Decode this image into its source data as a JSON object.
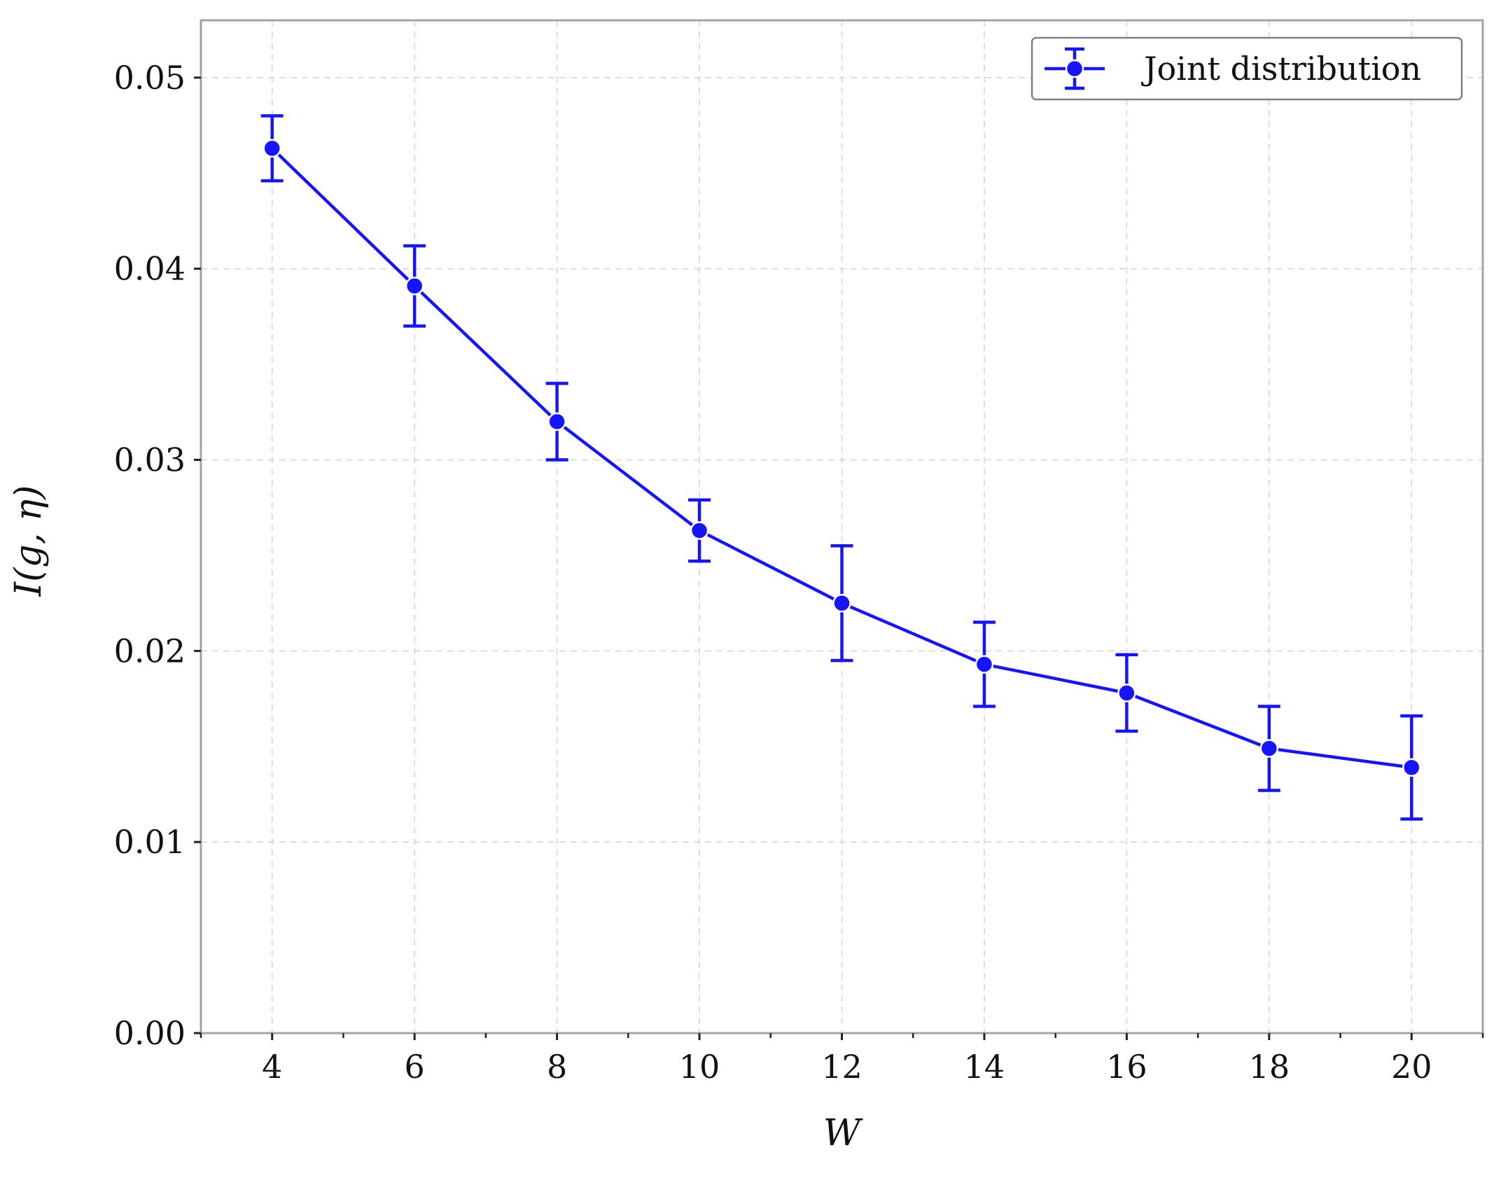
{
  "chart_data": {
    "type": "line",
    "title": "",
    "xlabel": "W",
    "ylabel": "I(g, η)",
    "xlim": [
      3,
      21
    ],
    "ylim": [
      0,
      0.053
    ],
    "x_ticks": [
      4,
      6,
      8,
      10,
      12,
      14,
      16,
      18,
      20
    ],
    "x_tick_labels": [
      "4",
      "6",
      "8",
      "10",
      "12",
      "14",
      "16",
      "18",
      "20"
    ],
    "x_minor_ticks": [
      3,
      5,
      7,
      9,
      11,
      13,
      15,
      17,
      19,
      21
    ],
    "y_ticks": [
      0,
      0.01,
      0.02,
      0.03,
      0.04,
      0.05
    ],
    "y_tick_labels": [
      "0.00",
      "0.01",
      "0.02",
      "0.03",
      "0.04",
      "0.05"
    ],
    "grid": true,
    "legend_position": "top-right",
    "series": [
      {
        "name": "Joint distribution",
        "color": "#1414ff",
        "marker": "circle",
        "error_bars": true,
        "x": [
          4,
          6,
          8,
          10,
          12,
          14,
          16,
          18,
          20
        ],
        "y": [
          0.0463,
          0.0391,
          0.032,
          0.0263,
          0.0225,
          0.0193,
          0.0178,
          0.0149,
          0.0139
        ],
        "yerr": [
          0.0017,
          0.0021,
          0.002,
          0.0016,
          0.003,
          0.0022,
          0.002,
          0.0022,
          0.0027
        ]
      }
    ]
  }
}
